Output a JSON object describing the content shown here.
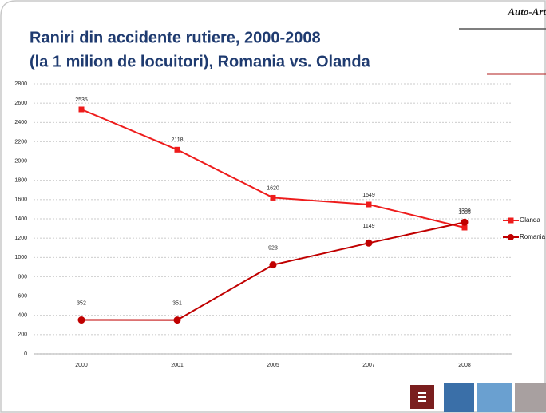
{
  "logo": "Auto-Art",
  "chart_data": {
    "type": "line",
    "title_lines": [
      "Raniri din accidente rutiere, 2000-2008",
      "(la 1 milion de locuitori), Romania vs. Olanda"
    ],
    "categories": [
      "2000",
      "2001",
      "2005",
      "2007",
      "2008"
    ],
    "series": [
      {
        "name": "Olanda",
        "color": "#ee1c1c",
        "marker": "square",
        "values": [
          2535,
          2118,
          1620,
          1549,
          1309
        ]
      },
      {
        "name": "Romania",
        "color": "#c00000",
        "marker": "circle",
        "values": [
          352,
          351,
          923,
          1149,
          1365
        ]
      }
    ],
    "ylim": [
      0,
      2800
    ],
    "yticks": [
      0,
      200,
      400,
      600,
      800,
      1000,
      1200,
      1400,
      1600,
      1800,
      2000,
      2200,
      2400,
      2600,
      2800
    ],
    "grid": true,
    "legend": "right"
  }
}
